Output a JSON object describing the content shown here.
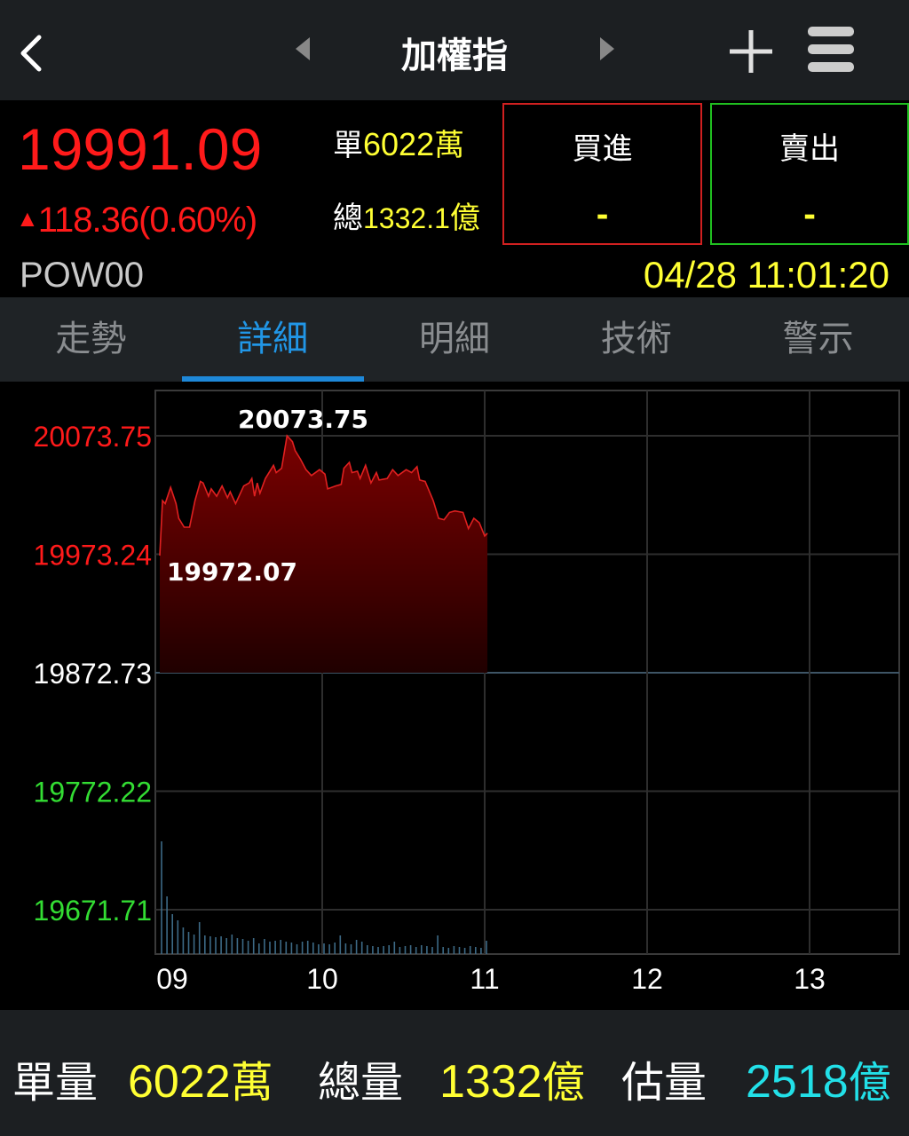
{
  "header": {
    "title": "加權指",
    "back_icon": "chevron-left-icon",
    "prev_icon": "triangle-left-icon",
    "next_icon": "triangle-right-icon",
    "add_icon": "plus-icon",
    "menu_icon": "hamburger-menu-icon"
  },
  "quote": {
    "price": "19991.09",
    "change": "118.36(0.60%)",
    "direction": "up",
    "single_label": "單",
    "single_value": "6022",
    "single_unit": "萬",
    "total_label": "總",
    "total_value": "1332.1",
    "total_unit": "億",
    "code": "POW00",
    "timestamp": "04/28 11:01:20"
  },
  "buy": {
    "label": "買進",
    "value": "-"
  },
  "sell": {
    "label": "賣出",
    "value": "-"
  },
  "tabs": [
    {
      "label": "走勢"
    },
    {
      "label": "詳細",
      "active": true
    },
    {
      "label": "明細"
    },
    {
      "label": "技術"
    },
    {
      "label": "警示"
    }
  ],
  "colors": {
    "up": "#ff1a1a",
    "down": "#33dd33",
    "neutral": "#ffffff",
    "accent": "#1e88d8",
    "highlight": "#ffff33",
    "estimate": "#22e0e8"
  },
  "chart_data": {
    "type": "area",
    "reference_price": 19872.73,
    "y_ticks": [
      {
        "label": "20073.75",
        "value": 20073.75,
        "color": "up"
      },
      {
        "label": "19973.24",
        "value": 19973.24,
        "color": "up"
      },
      {
        "label": "19872.73",
        "value": 19872.73,
        "color": "neutral"
      },
      {
        "label": "19772.22",
        "value": 19772.22,
        "color": "down"
      },
      {
        "label": "19671.71",
        "value": 19671.71,
        "color": "down"
      }
    ],
    "x_ticks": [
      "09",
      "10",
      "11",
      "12",
      "13"
    ],
    "x_range": [
      "09:00",
      "13:30"
    ],
    "high_label": "20073.75",
    "low_label": "19972.07",
    "grid": true,
    "price_series": [
      [
        "09:00",
        19972.07
      ],
      [
        "09:01",
        20018.7
      ],
      [
        "09:02",
        20016.2
      ],
      [
        "09:04",
        20030.0
      ],
      [
        "09:06",
        20016.2
      ],
      [
        "09:07",
        20003.7
      ],
      [
        "09:09",
        19996.2
      ],
      [
        "09:11",
        19996.2
      ],
      [
        "09:13",
        20018.7
      ],
      [
        "09:15",
        20035.0
      ],
      [
        "09:16",
        20033.7
      ],
      [
        "09:18",
        20022.5
      ],
      [
        "09:19",
        20028.7
      ],
      [
        "09:21",
        20022.5
      ],
      [
        "09:23",
        20031.2
      ],
      [
        "09:25",
        20021.2
      ],
      [
        "09:26",
        20026.2
      ],
      [
        "09:28",
        20016.2
      ],
      [
        "09:31",
        20031.2
      ],
      [
        "09:33",
        20033.7
      ],
      [
        "09:34",
        20037.5
      ],
      [
        "09:35",
        20022.5
      ],
      [
        "09:36",
        20033.7
      ],
      [
        "09:37",
        20025.0
      ],
      [
        "09:39",
        20037.5
      ],
      [
        "09:42",
        20048.7
      ],
      [
        "09:43",
        20042.5
      ],
      [
        "09:45",
        20046.2
      ],
      [
        "09:47",
        20073.75
      ],
      [
        "09:49",
        20068.7
      ],
      [
        "09:50",
        20061.2
      ],
      [
        "09:52",
        20053.7
      ],
      [
        "09:54",
        20045.0
      ],
      [
        "09:56",
        20040.0
      ],
      [
        "09:59",
        20045.0
      ],
      [
        "10:01",
        20041.2
      ],
      [
        "10:02",
        20028.7
      ],
      [
        "10:05",
        20031.2
      ],
      [
        "10:07",
        20032.5
      ],
      [
        "10:08",
        20046.2
      ],
      [
        "10:10",
        20051.2
      ],
      [
        "10:11",
        20042.5
      ],
      [
        "10:13",
        20043.7
      ],
      [
        "10:14",
        20037.5
      ],
      [
        "10:16",
        20048.7
      ],
      [
        "10:18",
        20033.7
      ],
      [
        "10:20",
        20042.5
      ],
      [
        "10:21",
        20036.2
      ],
      [
        "10:24",
        20037.5
      ],
      [
        "10:26",
        20045.0
      ],
      [
        "10:28",
        20040.0
      ],
      [
        "10:31",
        20045.0
      ],
      [
        "10:33",
        20042.5
      ],
      [
        "10:35",
        20047.5
      ],
      [
        "10:36",
        20036.2
      ],
      [
        "10:38",
        20035.0
      ],
      [
        "10:41",
        20018.7
      ],
      [
        "10:43",
        20003.7
      ],
      [
        "10:45",
        20002.5
      ],
      [
        "10:47",
        20008.7
      ],
      [
        "10:49",
        20010.0
      ],
      [
        "10:52",
        20008.7
      ],
      [
        "10:54",
        19995.0
      ],
      [
        "10:56",
        20003.7
      ],
      [
        "10:58",
        20000.0
      ],
      [
        "11:00",
        19988.7
      ],
      [
        "11:01",
        19991.09
      ]
    ],
    "volume_relative": [
      127,
      65,
      45,
      38,
      30,
      25,
      22,
      36,
      21,
      20,
      19,
      20,
      18,
      22,
      18,
      17,
      15,
      18,
      12,
      17,
      14,
      15,
      16,
      14,
      13,
      11,
      14,
      15,
      13,
      11,
      12,
      11,
      13,
      21,
      12,
      11,
      16,
      14,
      10,
      9,
      8,
      9,
      10,
      14,
      8,
      9,
      10,
      8,
      10,
      9,
      8,
      21,
      8,
      7,
      9,
      8,
      7,
      9,
      8,
      7,
      15
    ]
  },
  "footer": {
    "single_label": "單量",
    "single_value": "6022",
    "single_unit": "萬",
    "total_label": "總量",
    "total_value": "1332",
    "total_unit": "億",
    "estimate_label": "估量",
    "estimate_value": "2518",
    "estimate_unit": "億"
  }
}
